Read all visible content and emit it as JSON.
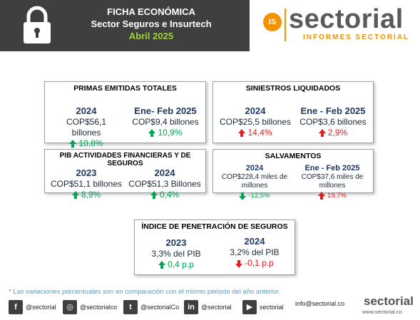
{
  "header": {
    "title_line1": "FICHA ECONÓMICA",
    "title_line2": "Sector Seguros e Insurtech",
    "title_line3": "Abril 2025",
    "lock_icon": "lock-icon",
    "colors": {
      "band": "#3f3f3f",
      "accent": "#9bd23c"
    }
  },
  "logo": {
    "badge": "IS",
    "word": "sectorial",
    "subtitle": "INFORMES SECTORIAL"
  },
  "cards": {
    "primas": {
      "title": "PRIMAS EMITIDAS TOTALES",
      "left": {
        "label": "2024",
        "value": "COP$56,1 billones",
        "change": "10,8%",
        "direction": "up",
        "color": "green"
      },
      "right": {
        "label": "Ene- Feb 2025",
        "value": "COP$9,4 billones",
        "change": "10,9%",
        "direction": "up",
        "color": "green"
      }
    },
    "siniestros": {
      "title": "SINIESTROS LIQUIDADOS",
      "left": {
        "label": "2024",
        "value": "COP$25,5 billones",
        "change": "14,4%",
        "direction": "up",
        "color": "red"
      },
      "right": {
        "label": "Ene - Feb 2025",
        "value": "COP$3,6 billones",
        "change": "2,9%",
        "direction": "up",
        "color": "red"
      }
    },
    "pib": {
      "title": "PIB ACTIVIDADES FINANCIERAS Y DE SEGUROS",
      "left": {
        "label": "2023",
        "value": "COP$51,1 billones",
        "change": "8,9%",
        "direction": "up",
        "color": "green"
      },
      "right": {
        "label": "2024",
        "value": "COP$51,3 Billones",
        "change": "0,4%",
        "direction": "up",
        "color": "green"
      }
    },
    "salvamentos": {
      "title": "SALVAMENTOS",
      "left": {
        "label": "2024",
        "value_line1": "COP$228,4  miles de",
        "value_line2": "millones",
        "change": "-12,5%",
        "direction": "down",
        "color": "green"
      },
      "right": {
        "label": "Ene - Feb 2025",
        "value_line1": "COP$37,6 miles de",
        "value_line2": "millones",
        "change": "19,7%",
        "direction": "up",
        "color": "red"
      }
    },
    "penetracion": {
      "title": "ÍNDICE DE PENETRACIÓN DE SEGUROS",
      "left": {
        "label": "2023",
        "value": "3,3% del PIB",
        "change": "0,4 p.p",
        "direction": "up",
        "color": "green"
      },
      "right": {
        "label": "2024",
        "value": "3,2% del PIB",
        "change": "-0,1 p.p",
        "direction": "down",
        "color": "red"
      }
    }
  },
  "footnote": "* Las variaciones porcentuales son en comparación con el mismo periodo del año anterior.",
  "footer": {
    "facebook": "@sectorial",
    "instagram": "@sectorialco",
    "twitter": "@sectorialCo",
    "linkedin": "@sectorial",
    "youtube": "sectorial",
    "email": "info@sectorial.co",
    "brand": "sectorial",
    "url": "www.sectorial.co"
  }
}
